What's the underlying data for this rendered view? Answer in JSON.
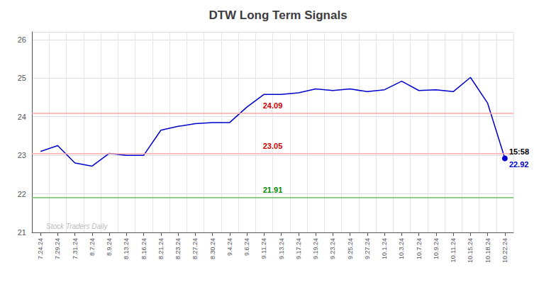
{
  "chart_data": {
    "type": "line",
    "title": "DTW Long Term Signals",
    "categories": [
      "7.24.24",
      "7.29.24",
      "7.31.24",
      "8.7.24",
      "8.9.24",
      "8.13.24",
      "8.16.24",
      "8.21.24",
      "8.23.24",
      "8.27.24",
      "8.30.24",
      "9.4.24",
      "9.6.24",
      "9.11.24",
      "9.13.24",
      "9.17.24",
      "9.19.24",
      "9.23.24",
      "9.25.24",
      "9.27.24",
      "10.1.24",
      "10.3.24",
      "10.7.24",
      "10.9.24",
      "10.11.24",
      "10.15.24",
      "10.18.24",
      "10.22.24"
    ],
    "values": [
      23.1,
      23.25,
      22.8,
      22.72,
      23.05,
      23.0,
      23.0,
      23.65,
      23.75,
      23.82,
      23.85,
      23.85,
      24.25,
      24.58,
      24.58,
      24.62,
      24.72,
      24.68,
      24.72,
      24.65,
      24.7,
      24.92,
      24.68,
      24.7,
      24.65,
      25.02,
      24.35,
      22.92
    ],
    "color": "#0000cc",
    "ylim": [
      21,
      26.2
    ],
    "yticks": [
      21,
      22,
      23,
      24,
      25,
      26
    ],
    "grid": true,
    "reference_lines": [
      {
        "value": 24.09,
        "label": "24.09",
        "color": "#ffaaaa",
        "label_color": "#cc0000"
      },
      {
        "value": 23.05,
        "label": "23.05",
        "color": "#ffaaaa",
        "label_color": "#cc0000"
      },
      {
        "value": 21.91,
        "label": "21.91",
        "color": "#66bb66",
        "label_color": "#008800"
      }
    ],
    "last_point": {
      "value": 22.92,
      "label": "22.92",
      "time_label": "15:58",
      "color": "#0000cc",
      "marker": "circle"
    },
    "watermark": "Stock Traders Daily"
  }
}
